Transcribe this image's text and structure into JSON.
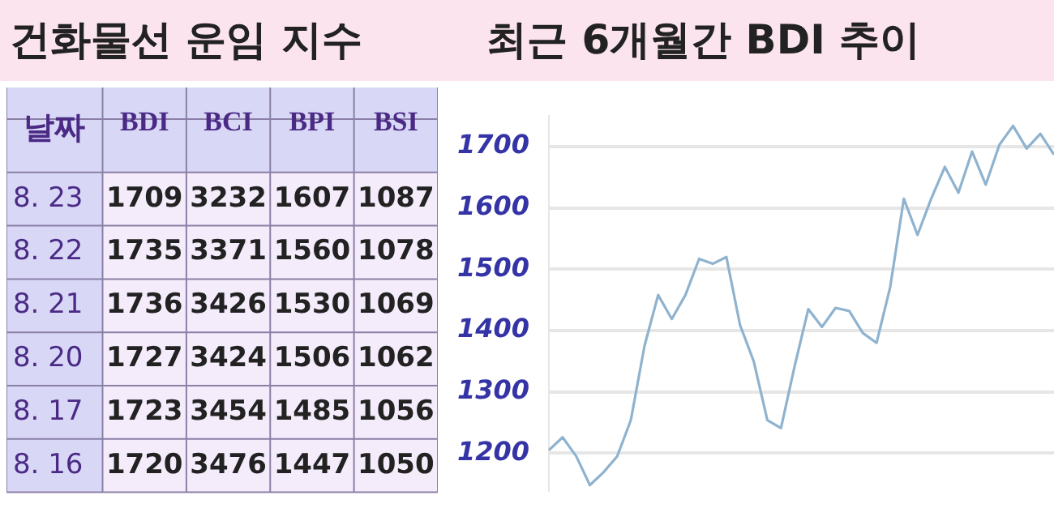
{
  "chart_data": [
    {
      "type": "heatmap",
      "title": "건화물선 운임 지수",
      "ylabel": "날짜",
      "data_labels": true,
      "categories": [
        "BDI",
        "BCI",
        "BPI",
        "BSI"
      ],
      "y_categories": [
        "8. 23",
        "8. 22",
        "8. 21",
        "8. 20",
        "8. 17",
        "8. 16"
      ],
      "cells": [
        [
          1709,
          3232,
          1607,
          1087
        ],
        [
          1735,
          3371,
          1560,
          1078
        ],
        [
          1736,
          3426,
          1530,
          1069
        ],
        [
          1727,
          3424,
          1506,
          1062
        ],
        [
          1723,
          3454,
          1485,
          1056
        ],
        [
          1720,
          3476,
          1447,
          1050
        ]
      ]
    },
    {
      "type": "line",
      "title": "최근 6개월간 BDI 추이",
      "categories": [
        null,
        null,
        null,
        null,
        null,
        null,
        null,
        null,
        null,
        null,
        null,
        null,
        null,
        null,
        null,
        null,
        null,
        null,
        null,
        null,
        null,
        null,
        null,
        null,
        null,
        null,
        null,
        null,
        null,
        null,
        null,
        null,
        null,
        null,
        null,
        null,
        null,
        null
      ],
      "series": [
        {
          "color": "#8fb3cf",
          "values": [
            1205,
            1226,
            1195,
            1148,
            1169,
            1195,
            1254,
            1375,
            1458,
            1419,
            1458,
            1517,
            1509,
            1520,
            1409,
            1350,
            1254,
            1241,
            1342,
            1435,
            1406,
            1437,
            1432,
            1396,
            1380,
            1471,
            1615,
            1556,
            1615,
            1667,
            1625,
            1692,
            1638,
            1703,
            1734,
            1697,
            1721,
            1687
          ]
        }
      ],
      "ylim": [
        1140,
        1750
      ],
      "yticks": [
        1200,
        1300,
        1400,
        1500,
        1600,
        1700
      ],
      "grid": "y",
      "tick_labels": "y",
      "legend": false,
      "marker": "none",
      "line_style": "solid"
    }
  ]
}
